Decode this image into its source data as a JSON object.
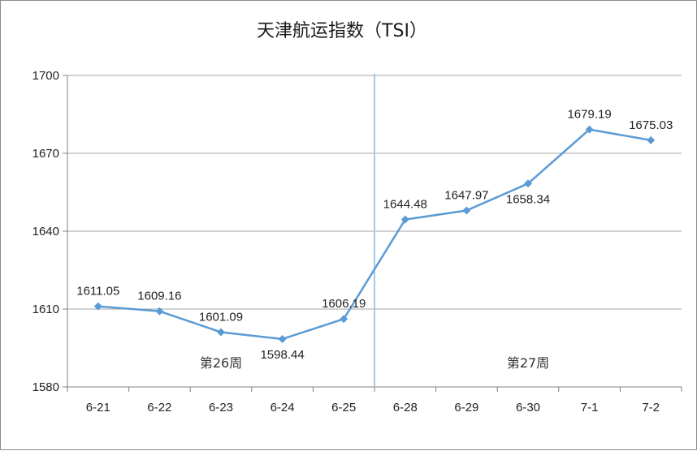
{
  "chart_data": {
    "type": "line",
    "title": "天津航运指数（TSI）",
    "categories": [
      "6-21",
      "6-22",
      "6-23",
      "6-24",
      "6-25",
      "6-28",
      "6-29",
      "6-30",
      "7-1",
      "7-2"
    ],
    "series": [
      {
        "values": [
          1611.05,
          1609.16,
          1601.09,
          1598.44,
          1606.19,
          1644.48,
          1647.97,
          1658.34,
          1679.19,
          1675.03
        ],
        "labels": [
          "1611.05",
          "1609.16",
          "1601.09",
          "1598.44",
          "1606.19",
          "1644.48",
          "1647.97",
          "1658.34",
          "1679.19",
          "1675.03"
        ],
        "color": "#5b9bd5"
      }
    ],
    "ylim": [
      1580,
      1700
    ],
    "yticks": [
      "1580",
      "1610",
      "1640",
      "1670",
      "1700"
    ],
    "grid": true,
    "annotations": [
      {
        "text": "第26周"
      },
      {
        "text": "第27周"
      }
    ],
    "separator_color": "#a8c8e4",
    "gridline_color": "#a6a6a6"
  }
}
